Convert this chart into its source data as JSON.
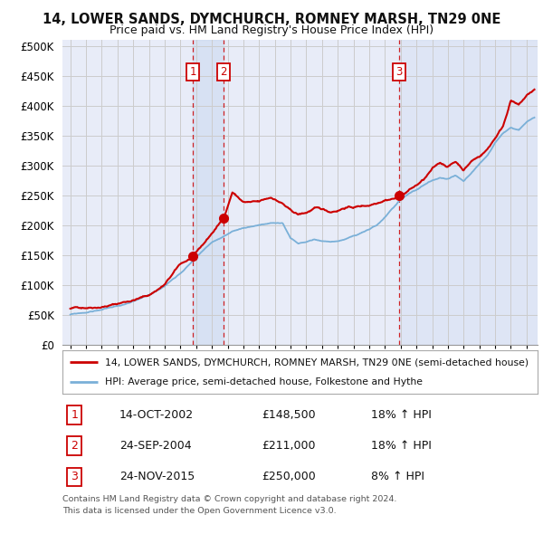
{
  "title": "14, LOWER SANDS, DYMCHURCH, ROMNEY MARSH, TN29 0NE",
  "subtitle": "Price paid vs. HM Land Registry's House Price Index (HPI)",
  "ylim": [
    0,
    510000
  ],
  "xlim_start": 1994.5,
  "xlim_end": 2024.7,
  "yticks": [
    0,
    50000,
    100000,
    150000,
    200000,
    250000,
    300000,
    350000,
    400000,
    450000,
    500000
  ],
  "ytick_labels": [
    "£0",
    "£50K",
    "£100K",
    "£150K",
    "£200K",
    "£250K",
    "£300K",
    "£350K",
    "£400K",
    "£450K",
    "£500K"
  ],
  "grid_color": "#cccccc",
  "background_color": "#ffffff",
  "plot_bg_color": "#e8ecf8",
  "sale_color": "#cc0000",
  "hpi_color": "#7ab0d8",
  "shade_color": "#c8d8f0",
  "sale_points": [
    {
      "year": 2002.79,
      "price": 148500,
      "label": "1"
    },
    {
      "year": 2004.73,
      "price": 211000,
      "label": "2"
    },
    {
      "year": 2015.9,
      "price": 250000,
      "label": "3"
    }
  ],
  "sale_vline_color": "#cc0000",
  "transaction_table": [
    {
      "label": "1",
      "date": "14-OCT-2002",
      "price": "£148,500",
      "hpi": "18% ↑ HPI"
    },
    {
      "label": "2",
      "date": "24-SEP-2004",
      "price": "£211,000",
      "hpi": "18% ↑ HPI"
    },
    {
      "label": "3",
      "date": "24-NOV-2015",
      "price": "£250,000",
      "hpi": "8% ↑ HPI"
    }
  ],
  "legend_line1": "14, LOWER SANDS, DYMCHURCH, ROMNEY MARSH, TN29 0NE (semi-detached house)",
  "legend_line2": "HPI: Average price, semi-detached house, Folkestone and Hythe",
  "footer1": "Contains HM Land Registry data © Crown copyright and database right 2024.",
  "footer2": "This data is licensed under the Open Government Licence v3.0."
}
